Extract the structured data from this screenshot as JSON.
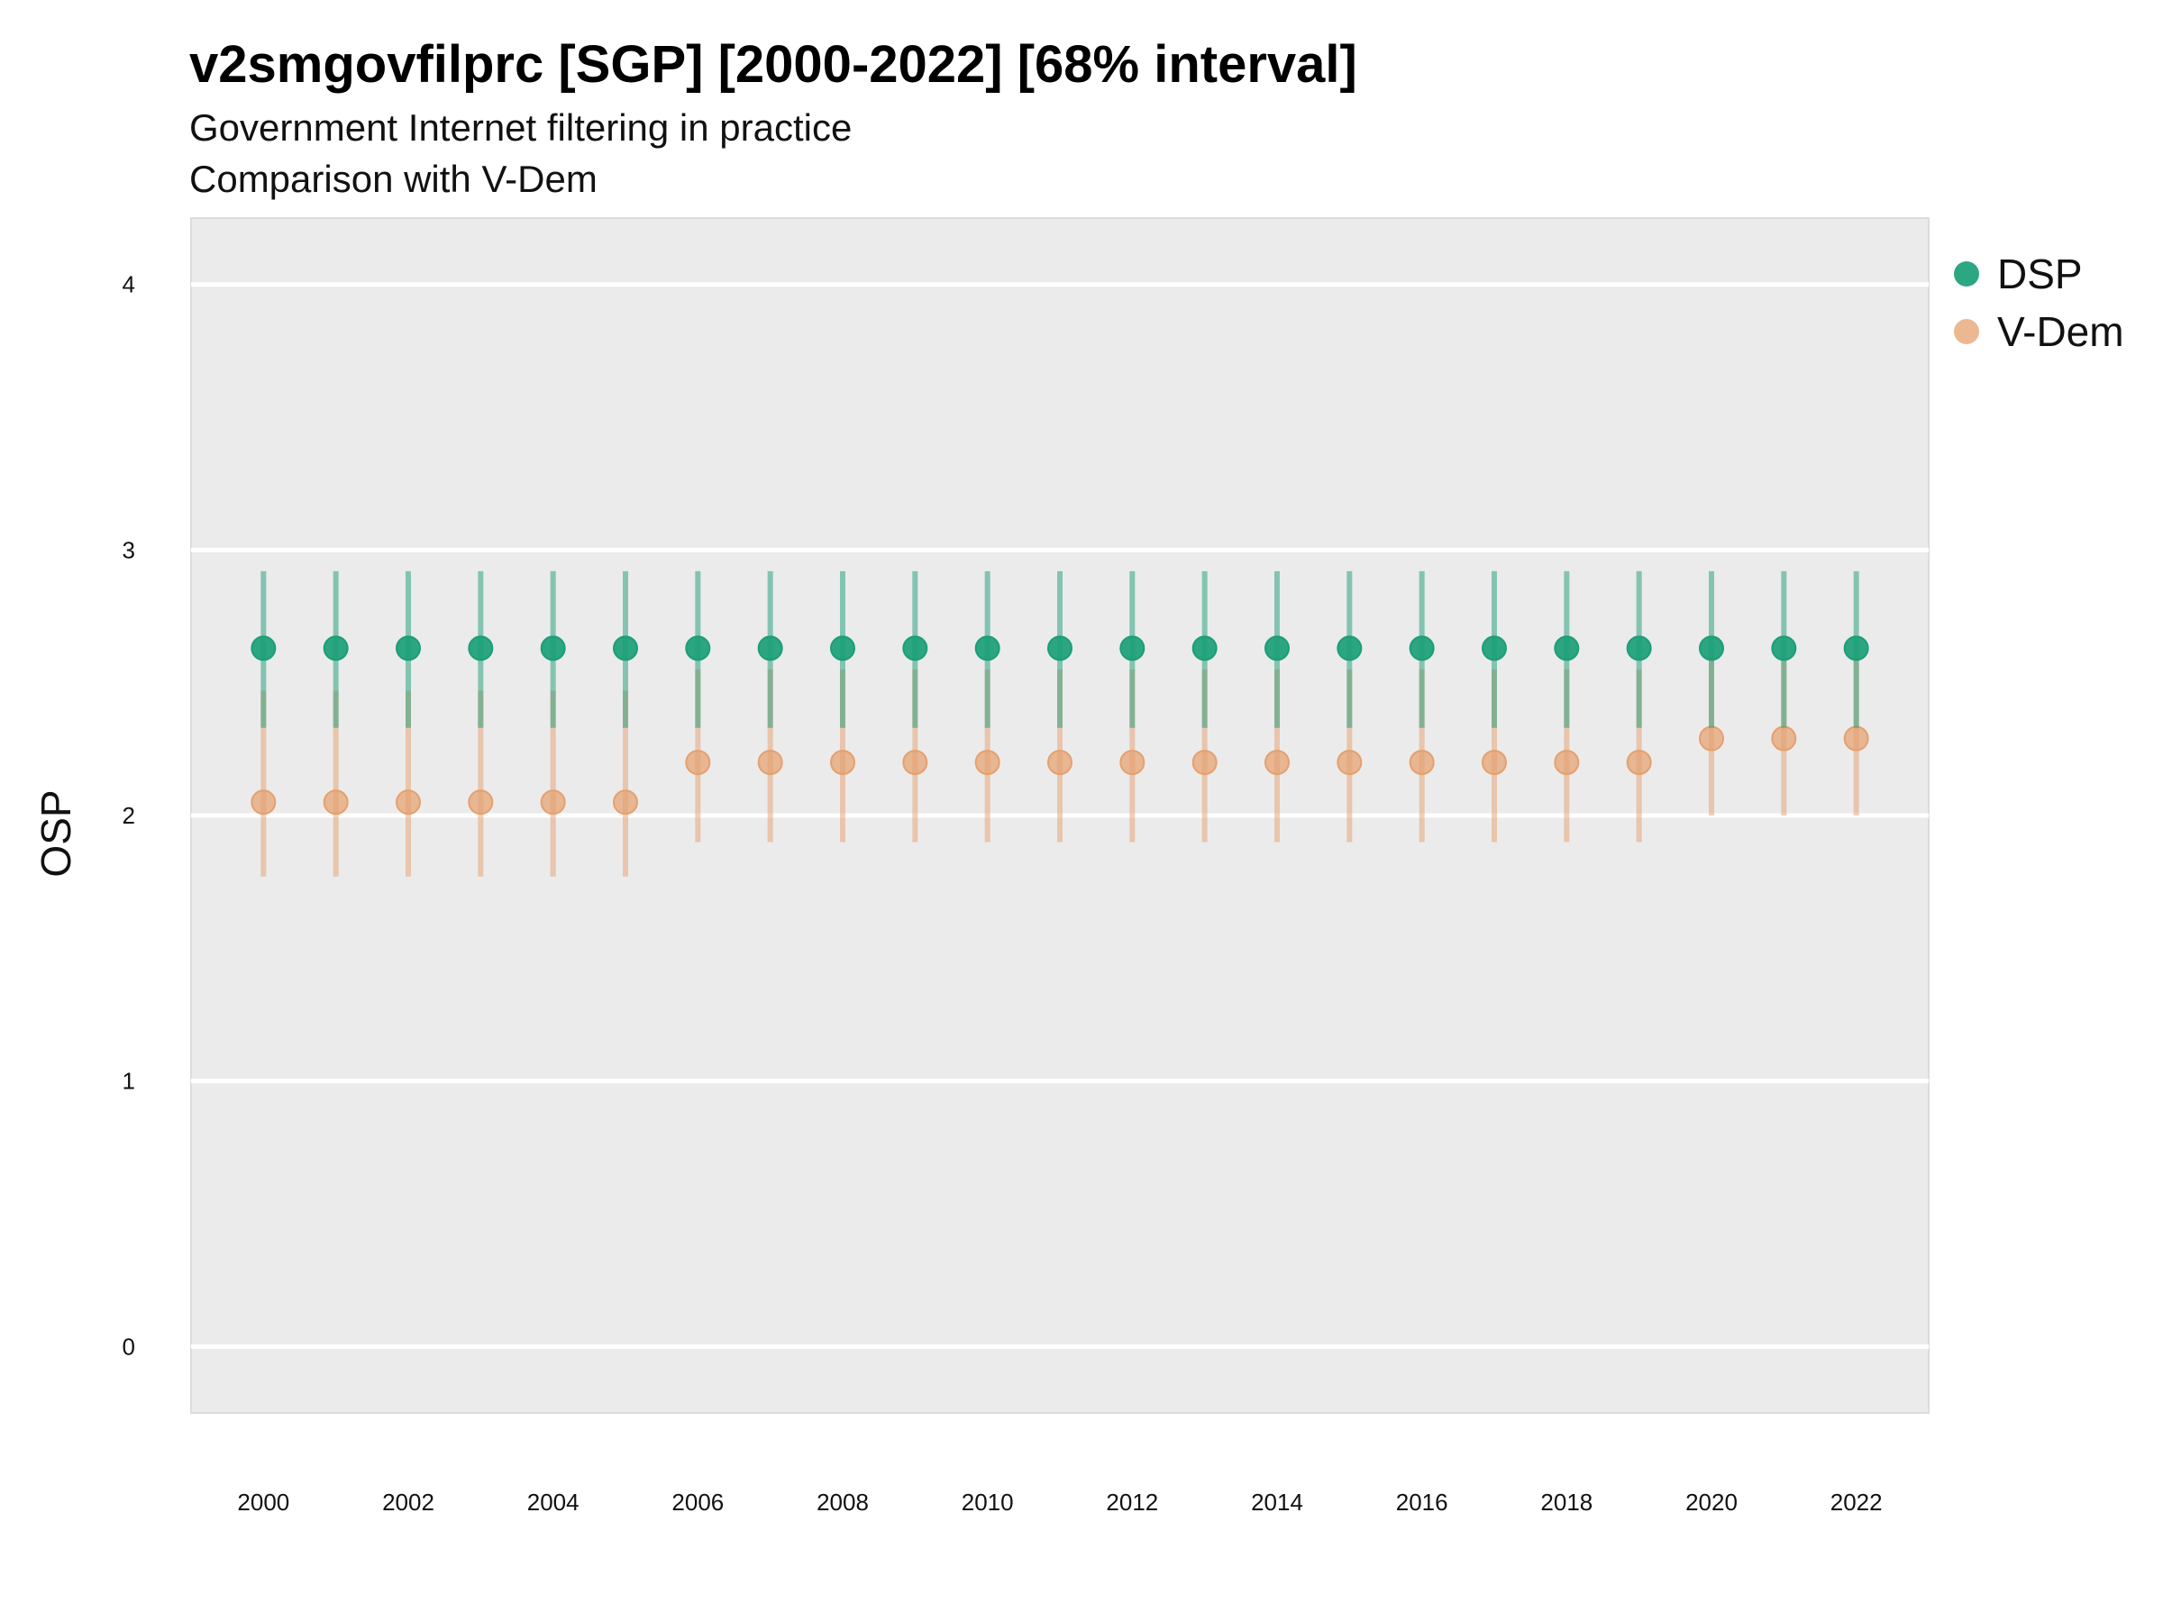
{
  "chart_data": {
    "type": "scatter",
    "title": "v2smgovfilprc [SGP] [2000-2022] [68% interval]",
    "subtitle": "Government Internet filtering in practice",
    "subtitle2": "Comparison with V-Dem",
    "xlabel": "",
    "ylabel": "OSP",
    "xlim": [
      1999,
      2023
    ],
    "ylim": [
      -0.25,
      4.25
    ],
    "y_ticks": [
      "0",
      "1",
      "2",
      "3",
      "4"
    ],
    "x_ticks": [
      "2000",
      "2002",
      "2004",
      "2006",
      "2008",
      "2010",
      "2012",
      "2014",
      "2016",
      "2018",
      "2020",
      "2022"
    ],
    "grid": true,
    "legend_position": "right",
    "x": [
      2000,
      2001,
      2002,
      2003,
      2004,
      2005,
      2006,
      2007,
      2008,
      2009,
      2010,
      2011,
      2012,
      2013,
      2014,
      2015,
      2016,
      2017,
      2018,
      2019,
      2020,
      2021,
      2022
    ],
    "series": [
      {
        "name": "DSP",
        "color": "#1b9e77",
        "values": [
          2.63,
          2.63,
          2.63,
          2.63,
          2.63,
          2.63,
          2.63,
          2.63,
          2.63,
          2.63,
          2.63,
          2.63,
          2.63,
          2.63,
          2.63,
          2.63,
          2.63,
          2.63,
          2.63,
          2.63,
          2.63,
          2.63,
          2.63
        ],
        "lower": [
          2.33,
          2.33,
          2.33,
          2.33,
          2.33,
          2.33,
          2.33,
          2.33,
          2.33,
          2.33,
          2.33,
          2.33,
          2.33,
          2.33,
          2.33,
          2.33,
          2.33,
          2.33,
          2.33,
          2.33,
          2.33,
          2.33,
          2.33
        ],
        "upper": [
          2.92,
          2.92,
          2.92,
          2.92,
          2.92,
          2.92,
          2.92,
          2.92,
          2.92,
          2.92,
          2.92,
          2.92,
          2.92,
          2.92,
          2.92,
          2.92,
          2.92,
          2.92,
          2.92,
          2.92,
          2.92,
          2.92,
          2.92
        ]
      },
      {
        "name": "V-Dem",
        "color": "#e6a06e",
        "values": [
          2.05,
          2.05,
          2.05,
          2.05,
          2.05,
          2.05,
          2.2,
          2.2,
          2.2,
          2.2,
          2.2,
          2.2,
          2.2,
          2.2,
          2.2,
          2.2,
          2.2,
          2.2,
          2.2,
          2.2,
          2.29,
          2.29,
          2.29
        ],
        "lower": [
          1.77,
          1.77,
          1.77,
          1.77,
          1.77,
          1.77,
          1.9,
          1.9,
          1.9,
          1.9,
          1.9,
          1.9,
          1.9,
          1.9,
          1.9,
          1.9,
          1.9,
          1.9,
          1.9,
          1.9,
          2.0,
          2.0,
          2.0
        ],
        "upper": [
          2.47,
          2.47,
          2.47,
          2.47,
          2.47,
          2.47,
          2.55,
          2.55,
          2.55,
          2.55,
          2.55,
          2.55,
          2.55,
          2.55,
          2.55,
          2.55,
          2.55,
          2.55,
          2.55,
          2.55,
          2.6,
          2.6,
          2.6
        ]
      }
    ]
  }
}
